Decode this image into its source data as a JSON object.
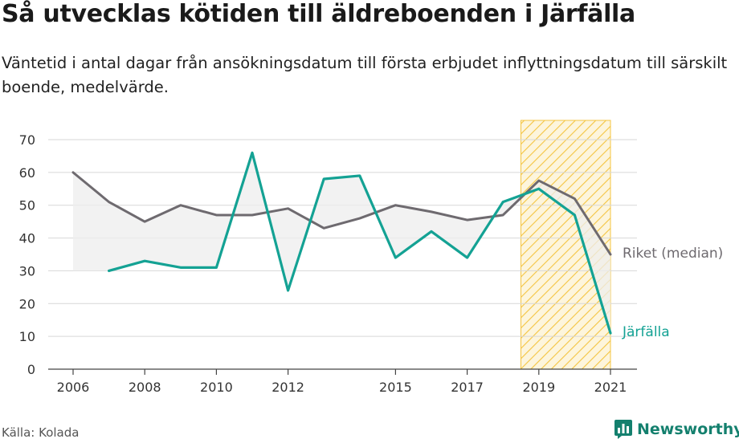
{
  "title": "Så utvecklas kötiden till äldreboenden i Järfälla",
  "subtitle": "Väntetid i antal dagar från ansökningsdatum till första erbjudet inflyttningsdatum till särskilt boende, medelvärde.",
  "source": "Källa: Kolada",
  "brand": "Newsworthy",
  "colors": {
    "riket": "#6e6a6f",
    "jarfalla": "#14a294",
    "grid": "#d7d7d7",
    "highlight": "#f4c542",
    "fill": "#ededed"
  },
  "chart_data": {
    "type": "line",
    "y_ticks": [
      "0",
      "10",
      "20",
      "30",
      "40",
      "50",
      "60",
      "70"
    ],
    "x_ticks": [
      "2006",
      "2008",
      "2010",
      "2012",
      "2015",
      "2017",
      "2019",
      "2021"
    ],
    "ylim": [
      0,
      70
    ],
    "xlim": [
      2005.3,
      2021.8
    ],
    "grid": true,
    "highlight_range": [
      2018.5,
      2021
    ],
    "series": [
      {
        "name": "Riket (median)",
        "color_key": "riket",
        "x": [
          2006,
          2007,
          2008,
          2009,
          2010,
          2011,
          2012,
          2013,
          2014,
          2015,
          2016,
          2017,
          2018,
          2019,
          2020,
          2021
        ],
        "values": [
          60,
          51,
          45,
          50,
          47,
          47,
          49,
          43,
          46,
          50,
          48,
          45.5,
          47,
          57.5,
          52,
          35
        ]
      },
      {
        "name": "Järfälla",
        "color_key": "jarfalla",
        "x": [
          2007,
          2008,
          2009,
          2010,
          2011,
          2012,
          2013,
          2014,
          2015,
          2016,
          2017,
          2018,
          2019,
          2020,
          2021
        ],
        "values": [
          30,
          33,
          31,
          31,
          66,
          24,
          58,
          59,
          34,
          42,
          34,
          51,
          55,
          47,
          11
        ]
      }
    ]
  }
}
